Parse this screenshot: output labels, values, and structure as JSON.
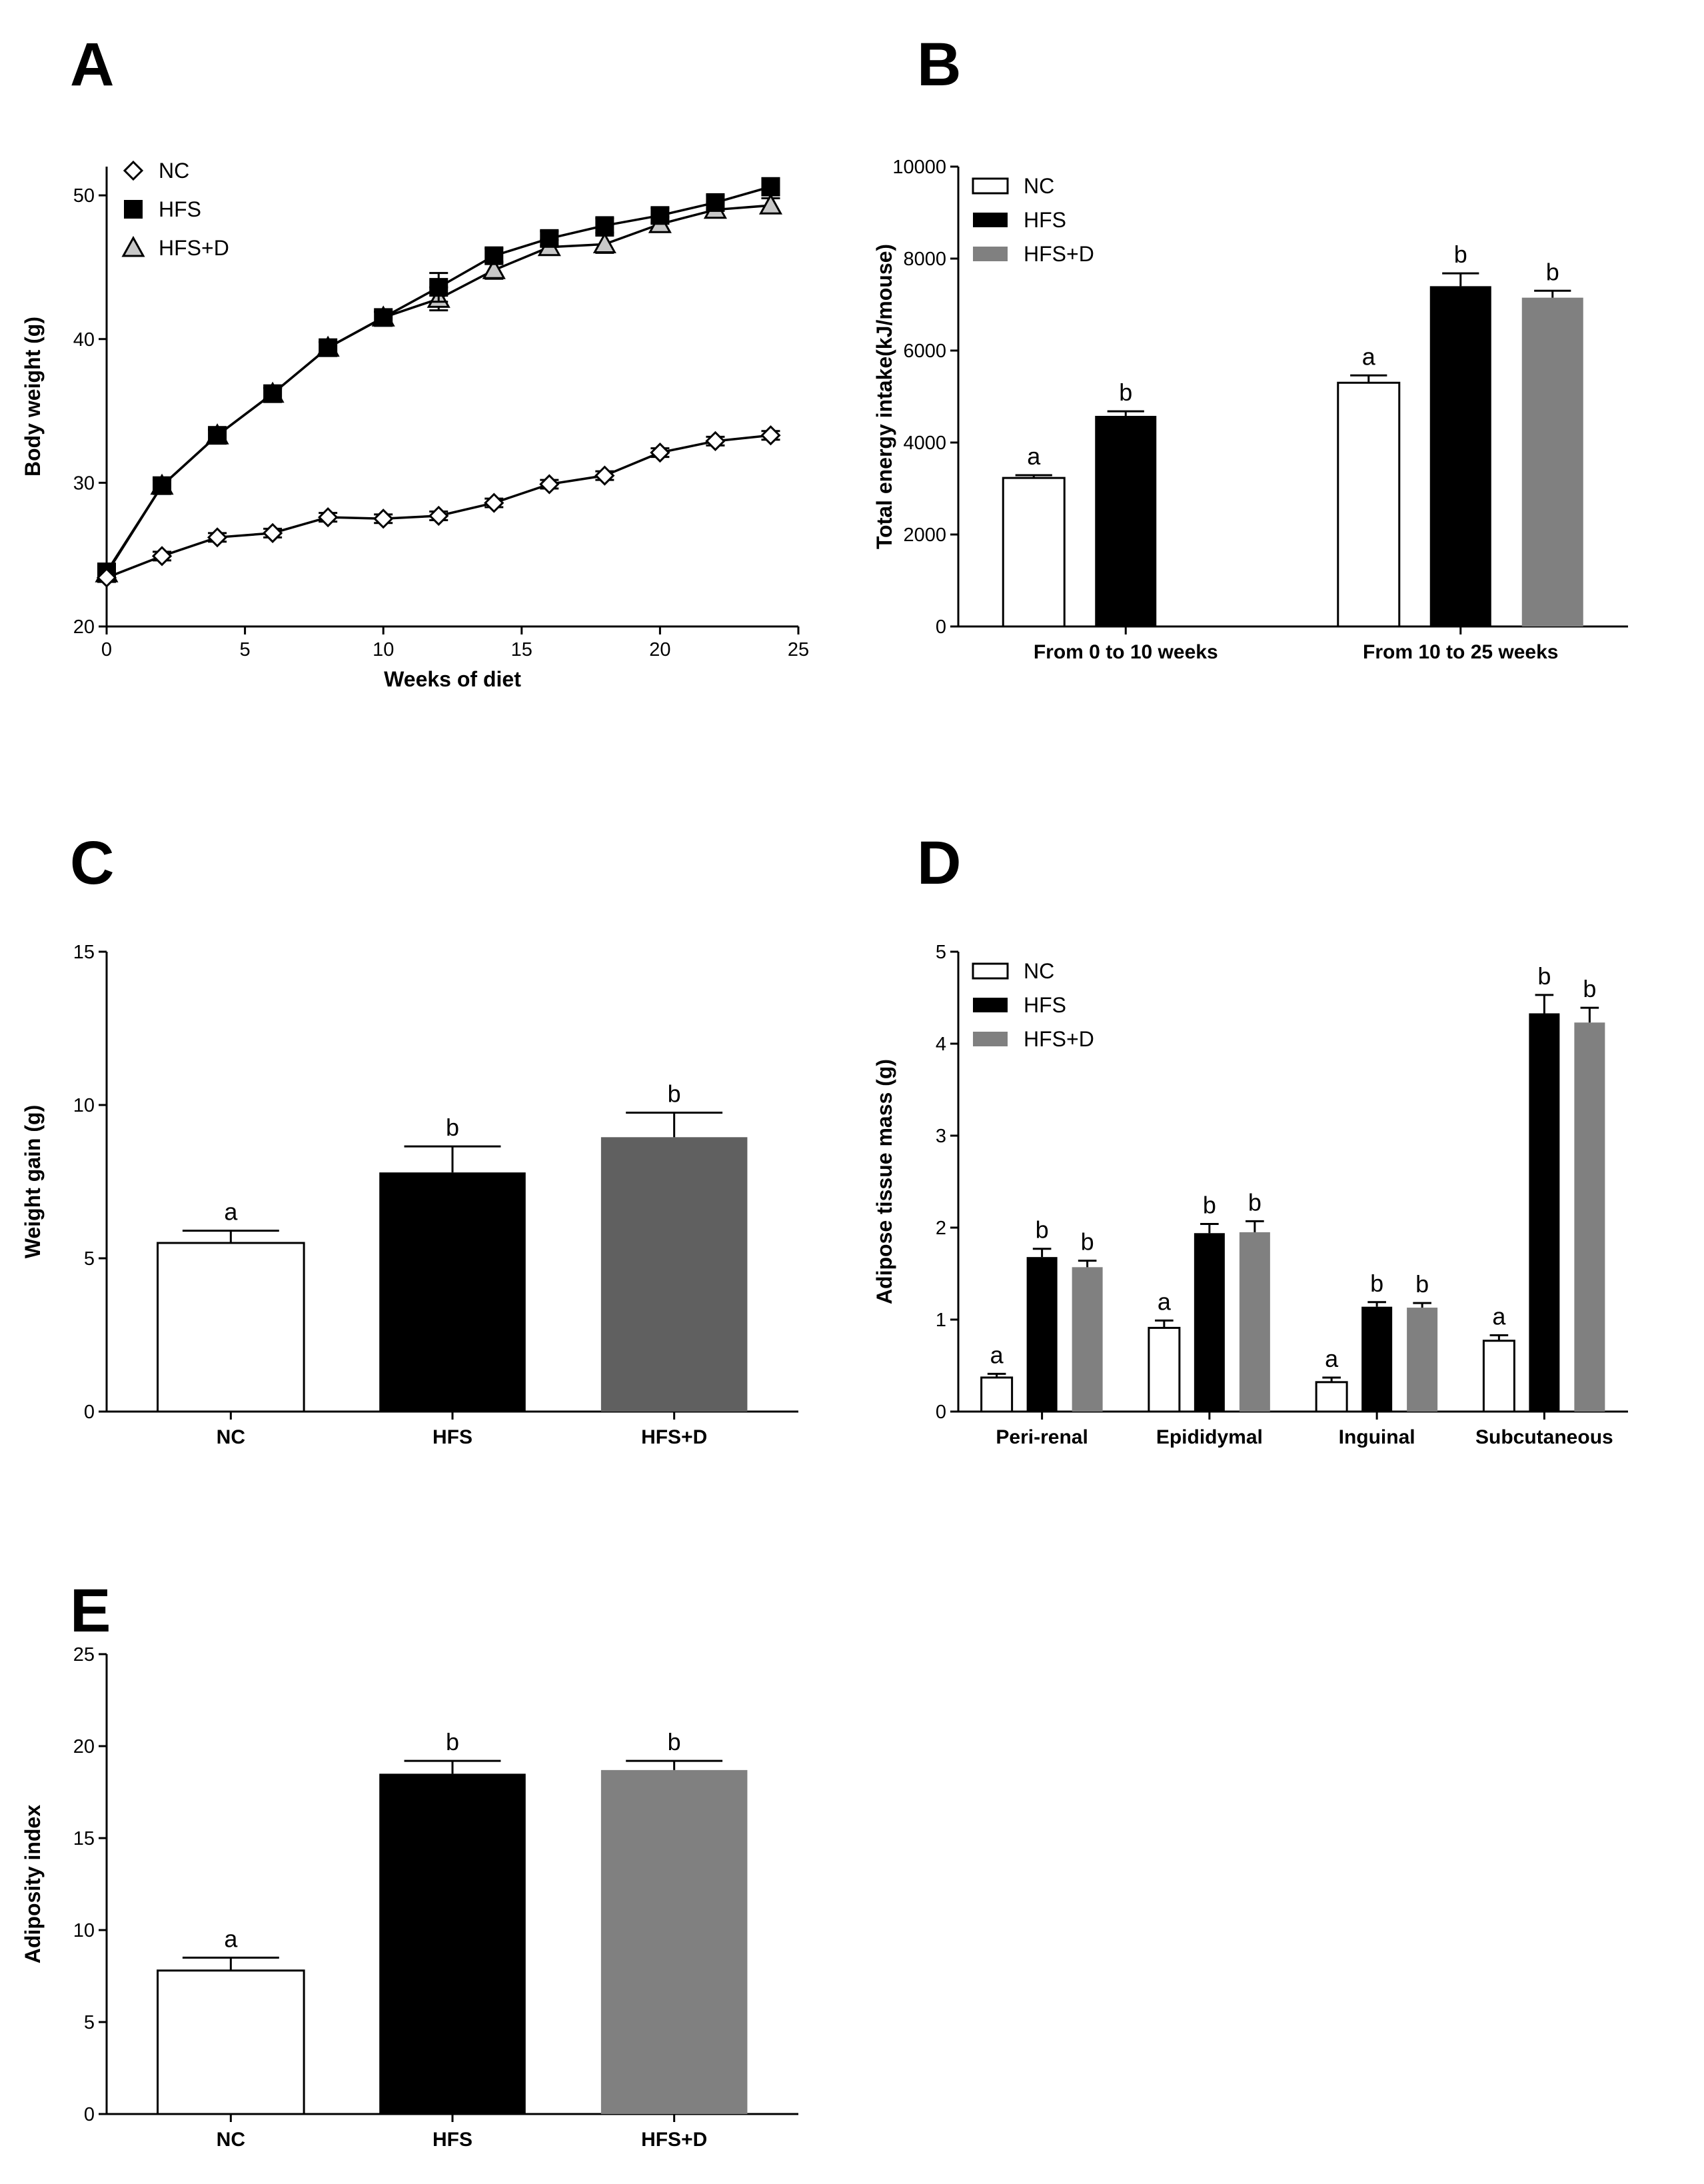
{
  "figure": {
    "panel_letters": [
      "A",
      "B",
      "C",
      "D",
      "E"
    ]
  },
  "chart_data": [
    {
      "id": "A",
      "type": "line",
      "title": "",
      "xlabel": "Weeks of diet",
      "ylabel": "Body weight (g)",
      "xlim": [
        0,
        25
      ],
      "ylim": [
        20,
        52
      ],
      "x_ticks": [
        0,
        5,
        10,
        15,
        20,
        25
      ],
      "y_ticks": [
        20,
        30,
        40,
        50
      ],
      "grid": false,
      "legend_position": "top-left",
      "x": [
        0,
        2,
        4,
        6,
        8,
        10,
        12,
        14,
        16,
        18,
        20,
        22,
        24
      ],
      "series": [
        {
          "name": "NC",
          "marker": "diamond",
          "color": "#ffffff",
          "values": [
            23.4,
            24.9,
            26.2,
            26.5,
            27.6,
            27.5,
            27.7,
            28.6,
            29.9,
            30.5,
            32.1,
            32.9,
            33.3
          ],
          "errors": [
            0.3,
            0.3,
            0.3,
            0.3,
            0.3,
            0.3,
            0.3,
            0.3,
            0.3,
            0.3,
            0.3,
            0.3,
            0.3
          ]
        },
        {
          "name": "HFS",
          "marker": "square",
          "color": "#000000",
          "values": [
            23.8,
            29.8,
            33.3,
            36.2,
            39.4,
            41.5,
            43.6,
            45.8,
            47.0,
            47.9,
            48.6,
            49.5,
            50.6
          ],
          "errors": [
            0.3,
            0.4,
            0.4,
            0.4,
            0.4,
            0.4,
            1.0,
            0.5,
            0.5,
            0.5,
            0.5,
            0.5,
            0.6
          ]
        },
        {
          "name": "HFS+D",
          "marker": "triangle",
          "color": "#c8c8c8",
          "values": [
            23.7,
            29.8,
            33.3,
            36.2,
            39.4,
            41.5,
            42.8,
            44.8,
            46.4,
            46.6,
            48.0,
            49.0,
            49.3
          ],
          "errors": [
            0.3,
            0.4,
            0.4,
            0.4,
            0.4,
            0.4,
            0.8,
            0.6,
            0.5,
            0.6,
            0.5,
            0.5,
            0.5
          ]
        }
      ]
    },
    {
      "id": "B",
      "type": "bar",
      "title": "",
      "xlabel": "",
      "ylabel": "Total energy intake(kJ/mouse)",
      "ylim": [
        0,
        10000
      ],
      "y_ticks": [
        0,
        2000,
        4000,
        6000,
        8000,
        10000
      ],
      "legend_position": "top-left",
      "categories": [
        "From 0 to 10 weeks",
        "From 10 to 25 weeks"
      ],
      "series": [
        {
          "name": "NC",
          "color": "#ffffff",
          "values": [
            3230,
            5300
          ],
          "errors": [
            60,
            160
          ],
          "labels": [
            "a",
            "a"
          ]
        },
        {
          "name": "HFS",
          "color": "#000000",
          "values": [
            4580,
            7400
          ],
          "errors": [
            100,
            280
          ],
          "labels": [
            "b",
            "b"
          ]
        },
        {
          "name": "HFS+D",
          "color": "#808080",
          "values": [
            null,
            7150
          ],
          "errors": [
            null,
            150
          ],
          "labels": [
            "",
            "b"
          ]
        }
      ]
    },
    {
      "id": "C",
      "type": "bar",
      "title": "",
      "xlabel": "",
      "ylabel": "Weight gain (g)",
      "ylim": [
        0,
        15
      ],
      "y_ticks": [
        0,
        5,
        10,
        15
      ],
      "categories": [
        "NC",
        "HFS",
        "HFS+D"
      ],
      "colors": [
        "#ffffff",
        "#000000",
        "#606060"
      ],
      "values": [
        5.5,
        7.8,
        8.95
      ],
      "errors": [
        0.4,
        0.85,
        0.8
      ],
      "labels": [
        "a",
        "b",
        "b"
      ]
    },
    {
      "id": "D",
      "type": "bar",
      "title": "",
      "xlabel": "",
      "ylabel": "Adipose tissue mass (g)",
      "ylim": [
        0,
        5
      ],
      "y_ticks": [
        0,
        1,
        2,
        3,
        4,
        5
      ],
      "legend_position": "top-left",
      "categories": [
        "Peri-renal",
        "Epididymal",
        "Inguinal",
        "Subcutaneous"
      ],
      "series": [
        {
          "name": "NC",
          "color": "#ffffff",
          "values": [
            0.37,
            0.91,
            0.32,
            0.77
          ],
          "errors": [
            0.04,
            0.08,
            0.05,
            0.06
          ],
          "labels": [
            "a",
            "a",
            "a",
            "a"
          ]
        },
        {
          "name": "HFS",
          "color": "#000000",
          "values": [
            1.68,
            1.94,
            1.14,
            4.33
          ],
          "errors": [
            0.09,
            0.1,
            0.05,
            0.2
          ],
          "labels": [
            "b",
            "b",
            "b",
            "b"
          ]
        },
        {
          "name": "HFS+D",
          "color": "#808080",
          "values": [
            1.57,
            1.95,
            1.13,
            4.23
          ],
          "errors": [
            0.07,
            0.12,
            0.05,
            0.16
          ],
          "labels": [
            "b",
            "b",
            "b",
            "b"
          ]
        }
      ]
    },
    {
      "id": "E",
      "type": "bar",
      "title": "",
      "xlabel": "",
      "ylabel": "Adiposity index",
      "ylim": [
        0,
        25
      ],
      "y_ticks": [
        0,
        5,
        10,
        15,
        20,
        25
      ],
      "categories": [
        "NC",
        "HFS",
        "HFS+D"
      ],
      "colors": [
        "#ffffff",
        "#000000",
        "#808080"
      ],
      "values": [
        7.8,
        18.5,
        18.7
      ],
      "errors": [
        0.7,
        0.7,
        0.5
      ],
      "labels": [
        "a",
        "b",
        "b"
      ]
    }
  ]
}
